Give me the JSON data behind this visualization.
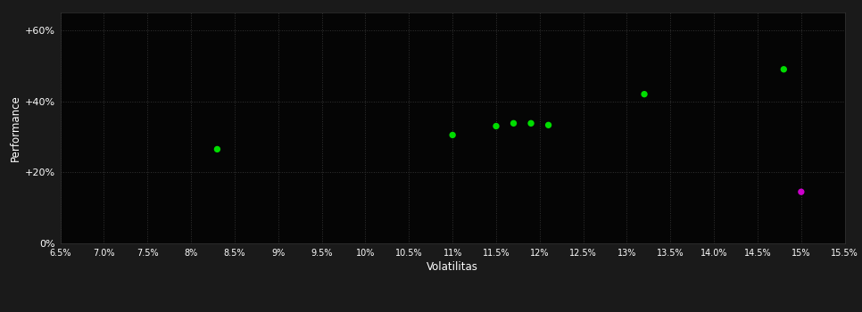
{
  "background_color": "#1a1a1a",
  "plot_bg_color": "#050505",
  "grid_color": "#333333",
  "text_color": "#ffffff",
  "xlabel": "Volatilitas",
  "ylabel": "Performance",
  "xlim": [
    0.065,
    0.155
  ],
  "ylim": [
    0.0,
    0.65
  ],
  "xticks": [
    0.065,
    0.07,
    0.075,
    0.08,
    0.085,
    0.09,
    0.095,
    0.1,
    0.105,
    0.11,
    0.115,
    0.12,
    0.125,
    0.13,
    0.135,
    0.14,
    0.145,
    0.15,
    0.155
  ],
  "yticks": [
    0.0,
    0.2,
    0.4,
    0.6
  ],
  "ytick_labels": [
    "0%",
    "+20%",
    "+40%",
    "+60%"
  ],
  "green_points": [
    [
      0.083,
      0.265
    ],
    [
      0.11,
      0.305
    ],
    [
      0.115,
      0.33
    ],
    [
      0.117,
      0.338
    ],
    [
      0.119,
      0.338
    ],
    [
      0.121,
      0.333
    ],
    [
      0.132,
      0.42
    ],
    [
      0.148,
      0.49
    ]
  ],
  "magenta_points": [
    [
      0.15,
      0.145
    ]
  ],
  "green_color": "#00dd00",
  "magenta_color": "#cc00cc",
  "marker_size": 28,
  "figsize": [
    9.66,
    3.5
  ],
  "dpi": 100
}
